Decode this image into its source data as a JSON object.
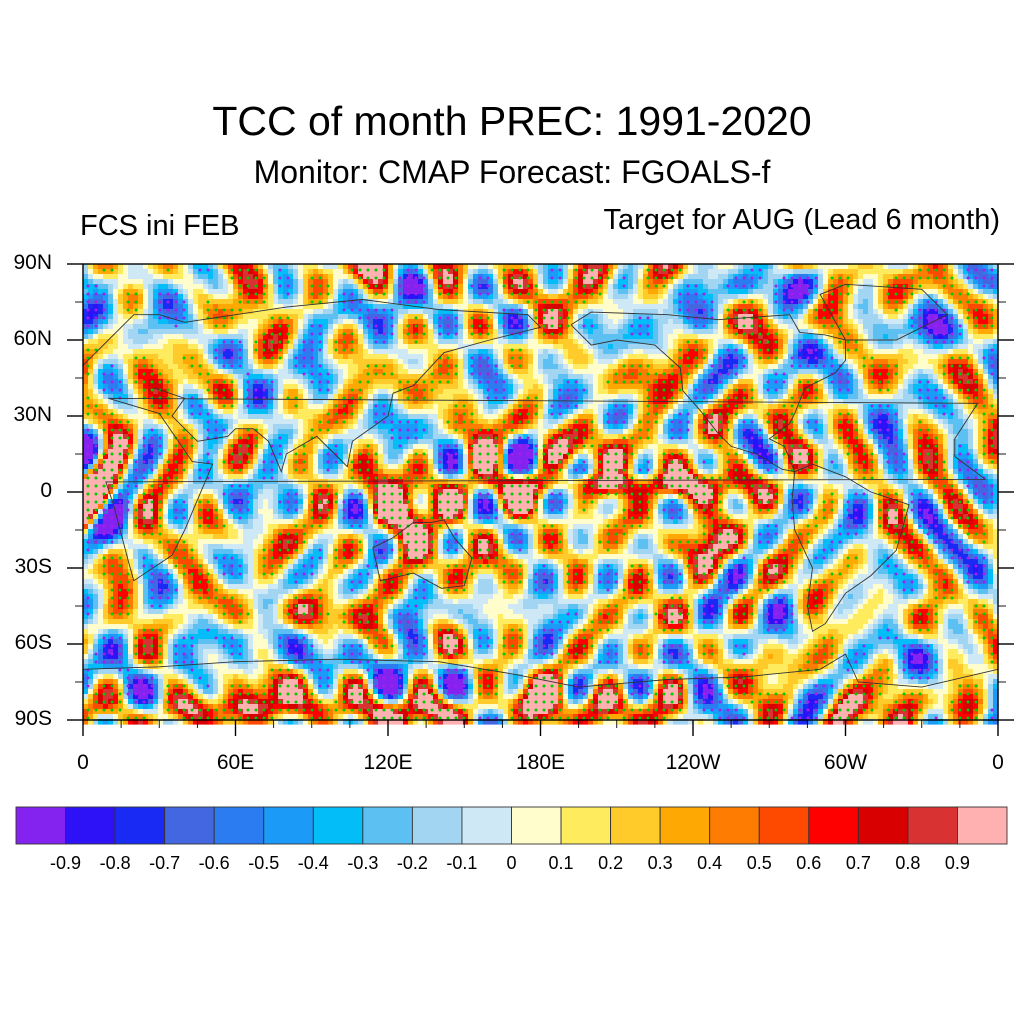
{
  "chart_data": {
    "type": "heatmap",
    "title": "TCC of month PREC: 1991-2020",
    "subtitle": "Monitor: CMAP   Forecast: FGOALS-f",
    "left_string": "FCS ini FEB",
    "right_string": "Target for AUG (Lead 6 month)",
    "variable": "Temporal correlation coefficient of monthly precipitation",
    "projection": "cylindrical equidistant, global, centered on 180E",
    "x_range_deg": [
      0,
      360
    ],
    "y_range_deg": [
      -90,
      90
    ],
    "x_ticks": [
      "0",
      "60E",
      "120E",
      "180E",
      "120W",
      "60W",
      "0"
    ],
    "y_ticks": [
      "90N",
      "60N",
      "30N",
      "0",
      "30S",
      "60S",
      "90S"
    ],
    "colorbar": {
      "orientation": "horizontal",
      "placement": "bottom",
      "levels": [
        -0.9,
        -0.8,
        -0.7,
        -0.6,
        -0.5,
        -0.4,
        -0.3,
        -0.2,
        -0.1,
        0,
        0.1,
        0.2,
        0.3,
        0.4,
        0.5,
        0.6,
        0.7,
        0.8,
        0.9
      ],
      "labels": [
        "-0.9",
        "-0.8",
        "-0.7",
        "-0.6",
        "-0.5",
        "-0.4",
        "-0.3",
        "-0.2",
        "-0.1",
        "0",
        "0.1",
        "0.2",
        "0.3",
        "0.4",
        "0.5",
        "0.6",
        "0.7",
        "0.8",
        "0.9"
      ],
      "colors": [
        "#8422f0",
        "#2d12f8",
        "#1a2af5",
        "#4367e0",
        "#2b7cf0",
        "#1c9af8",
        "#02bdf8",
        "#5cc1f2",
        "#a2d5f2",
        "#cfe8f5",
        "#fffdcb",
        "#feeb5e",
        "#ffcb2a",
        "#fea804",
        "#fe7c02",
        "#fe4a01",
        "#fe0000",
        "#d80000",
        "#d93232",
        "#ffb0b0"
      ]
    },
    "stippling": {
      "positive_significant_color": "#00cc00",
      "negative_significant_color": "#a020f0",
      "meaning": "significant correlation"
    },
    "features": [
      {
        "region": "Equatorial central-eastern Pacific (~0-5N, 160W-80W)",
        "value_range": [
          0.6,
          0.9
        ]
      },
      {
        "region": "Antarctic coast band (~80-90S, 40E-130E)",
        "value_range": [
          0.4,
          0.6
        ]
      },
      {
        "region": "Maritime Continent / Eastern Australia",
        "value_range": [
          0.4,
          0.7
        ]
      },
      {
        "region": "Southern Ocean south of Indian Ocean (~60-70S, 60E-130E)",
        "value_range": [
          -0.4,
          -0.2
        ]
      },
      {
        "region": "Tropical North Pacific (~10-25N, 150W-120W)",
        "value_range": [
          0.3,
          0.6
        ]
      },
      {
        "region": "Southeast Pacific (~15-35S, 140W-100W)",
        "value_range": [
          0.3,
          0.6
        ]
      }
    ]
  }
}
